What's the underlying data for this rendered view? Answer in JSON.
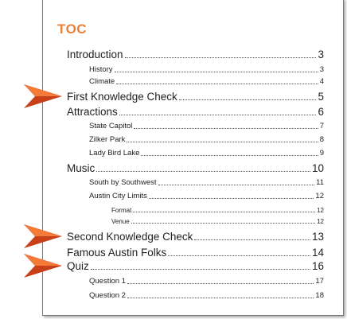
{
  "toc": {
    "heading": "TOC",
    "entries": [
      {
        "label": "Introduction",
        "page": "3",
        "level": 1
      },
      {
        "label": "History",
        "page": "3",
        "level": 2
      },
      {
        "label": "Climate",
        "page": "4",
        "level": 2
      },
      {
        "label": "First Knowledge Check",
        "page": "5",
        "level": 1,
        "arrow": true
      },
      {
        "label": "Attractions",
        "page": "6",
        "level": 1
      },
      {
        "label": "State Capitol",
        "page": "7",
        "level": 2
      },
      {
        "label": "Zilker Park",
        "page": "8",
        "level": 2
      },
      {
        "label": "Lady Bird Lake",
        "page": "9",
        "level": 2
      },
      {
        "label": "Music",
        "page": "10",
        "level": 1
      },
      {
        "label": "South by Southwest",
        "page": "11",
        "level": 2
      },
      {
        "label": "Austin City Limits",
        "page": "12",
        "level": 2
      },
      {
        "label": "Format",
        "page": "12",
        "level": 3
      },
      {
        "label": "Venue",
        "page": "12",
        "level": 3
      },
      {
        "label": "Second Knowledge Check",
        "page": "13",
        "level": 1,
        "arrow": true
      },
      {
        "label": "Famous Austin Folks",
        "page": "14",
        "level": 1
      },
      {
        "label": "Quiz",
        "page": "16",
        "level": 1,
        "arrow": true
      },
      {
        "label": "Question 1",
        "page": "17",
        "level": 2
      },
      {
        "label": "Question 2",
        "page": "18",
        "level": 2
      }
    ]
  },
  "colors": {
    "heading": "#e8813a",
    "arrow_light": "#f47a3a",
    "arrow_dark": "#c8401a"
  },
  "icons": {
    "callout": "arrow-right-icon"
  }
}
